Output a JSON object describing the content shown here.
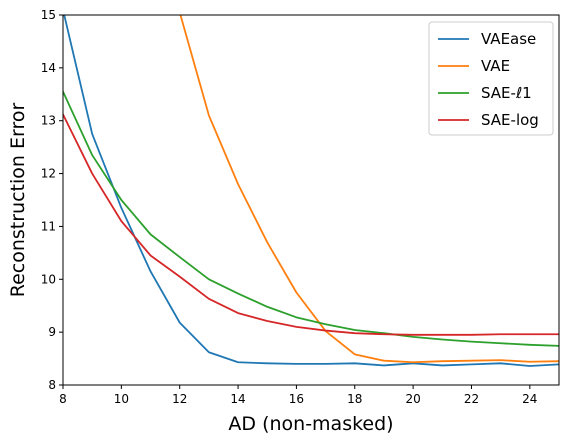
{
  "chart_data": {
    "type": "line",
    "xlabel": "AD (non-masked)",
    "ylabel": "Reconstruction Error",
    "xlim": [
      8,
      25
    ],
    "ylim": [
      8,
      15
    ],
    "xticks": [
      "8",
      "10",
      "12",
      "14",
      "16",
      "18",
      "20",
      "22",
      "24"
    ],
    "yticks": [
      "8",
      "9",
      "10",
      "11",
      "12",
      "13",
      "14",
      "15"
    ],
    "grid": false,
    "legend_position": "top-right",
    "series": [
      {
        "name": "VAEase",
        "color": "#1f77b4",
        "x": [
          8,
          9,
          10,
          11,
          12,
          13,
          14,
          15,
          16,
          17,
          18,
          19,
          20,
          21,
          22,
          23,
          24,
          25
        ],
        "y": [
          15.1,
          12.75,
          11.35,
          10.15,
          9.18,
          8.62,
          8.43,
          8.41,
          8.4,
          8.4,
          8.41,
          8.37,
          8.41,
          8.37,
          8.39,
          8.41,
          8.36,
          8.39
        ]
      },
      {
        "name": "VAE",
        "color": "#ff7f0e",
        "x": [
          12,
          13,
          14,
          15,
          16,
          17,
          18,
          19,
          20,
          21,
          22,
          23,
          24,
          25
        ],
        "y": [
          15.05,
          13.1,
          11.8,
          10.7,
          9.75,
          9.02,
          8.58,
          8.46,
          8.43,
          8.45,
          8.46,
          8.47,
          8.44,
          8.45
        ]
      },
      {
        "name": "SAE-ℓ1",
        "color": "#2ca02c",
        "x": [
          8,
          9,
          10,
          11,
          12,
          13,
          14,
          15,
          16,
          17,
          18,
          19,
          20,
          21,
          22,
          23,
          24,
          25
        ],
        "y": [
          13.55,
          12.35,
          11.5,
          10.85,
          10.42,
          10.0,
          9.73,
          9.48,
          9.28,
          9.15,
          9.04,
          8.98,
          8.91,
          8.86,
          8.82,
          8.79,
          8.76,
          8.74
        ]
      },
      {
        "name": "SAE-log",
        "color": "#d62728",
        "x": [
          8,
          9,
          10,
          11,
          12,
          13,
          14,
          15,
          16,
          17,
          18,
          19,
          20,
          21,
          22,
          23,
          24,
          25
        ],
        "y": [
          13.12,
          12.0,
          11.1,
          10.45,
          10.05,
          9.63,
          9.36,
          9.21,
          9.1,
          9.03,
          8.98,
          8.96,
          8.95,
          8.95,
          8.95,
          8.96,
          8.96,
          8.96
        ]
      }
    ]
  }
}
